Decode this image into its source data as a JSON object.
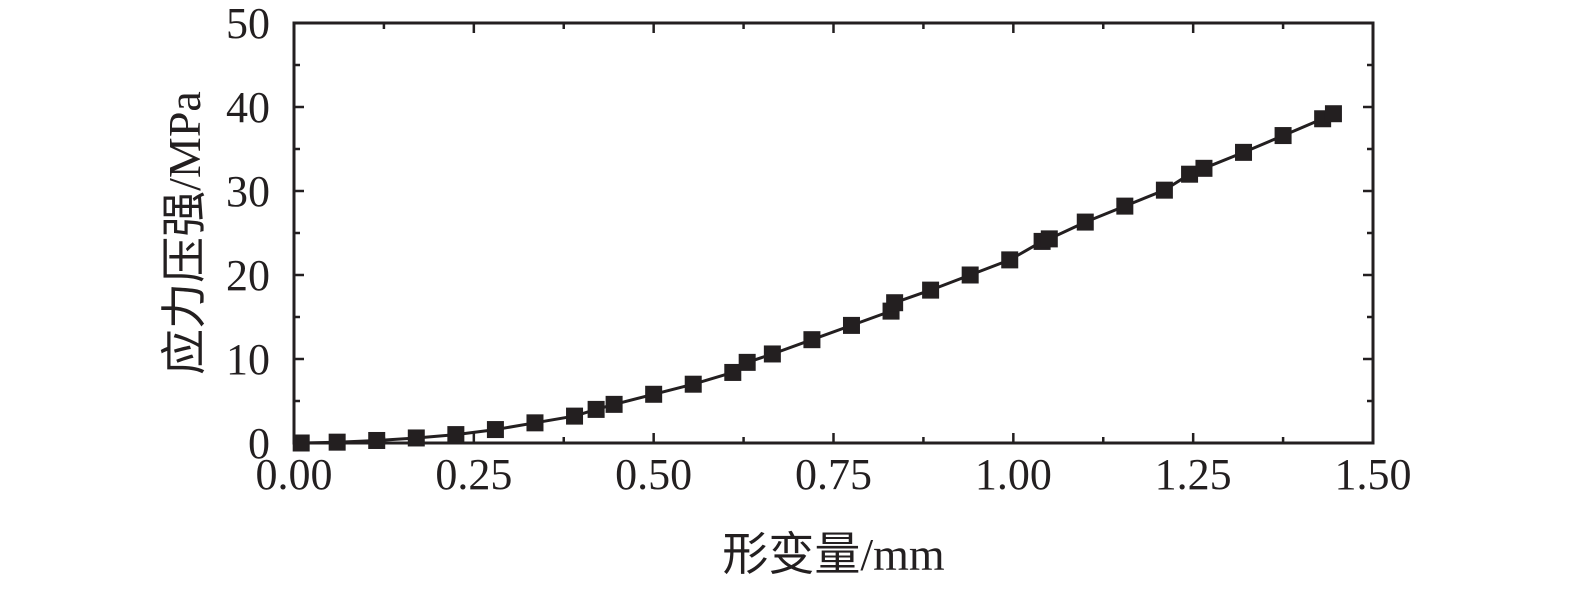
{
  "chart_data": {
    "type": "line",
    "title": "",
    "xlabel": "形变量/mm",
    "ylabel": "应力压强/MPa",
    "xlim": [
      0,
      1.5
    ],
    "ylim": [
      0,
      50
    ],
    "xticks": [
      0,
      0.25,
      0.5,
      0.75,
      1.0,
      1.25,
      1.5
    ],
    "xtick_labels": [
      "0.00",
      "0.25",
      "0.50",
      "0.75",
      "1.00",
      "1.25",
      "1.50"
    ],
    "yticks": [
      0,
      10,
      20,
      30,
      40,
      50
    ],
    "ytick_labels": [
      "0",
      "10",
      "20",
      "30",
      "40",
      "50"
    ],
    "grid": false,
    "legend": "none",
    "marker": "square",
    "color": "#231f20",
    "series": [
      {
        "x": [
          0.01,
          0.06,
          0.115,
          0.17,
          0.225,
          0.28,
          0.335,
          0.39,
          0.42,
          0.445,
          0.5,
          0.555,
          0.61,
          0.63,
          0.665,
          0.72,
          0.775,
          0.83,
          0.835,
          0.885,
          0.94,
          0.995,
          1.04,
          1.05,
          1.1,
          1.155,
          1.21,
          1.245,
          1.265,
          1.32,
          1.375,
          1.43,
          1.445
        ],
        "y": [
          0.0,
          0.1,
          0.3,
          0.6,
          1.0,
          1.6,
          2.4,
          3.2,
          4.0,
          4.6,
          5.8,
          7.0,
          8.4,
          9.6,
          10.6,
          12.3,
          14.0,
          15.7,
          16.7,
          18.2,
          20.0,
          21.8,
          24.0,
          24.3,
          26.3,
          28.2,
          30.1,
          32.0,
          32.7,
          34.6,
          36.6,
          38.6,
          39.2
        ]
      }
    ]
  }
}
